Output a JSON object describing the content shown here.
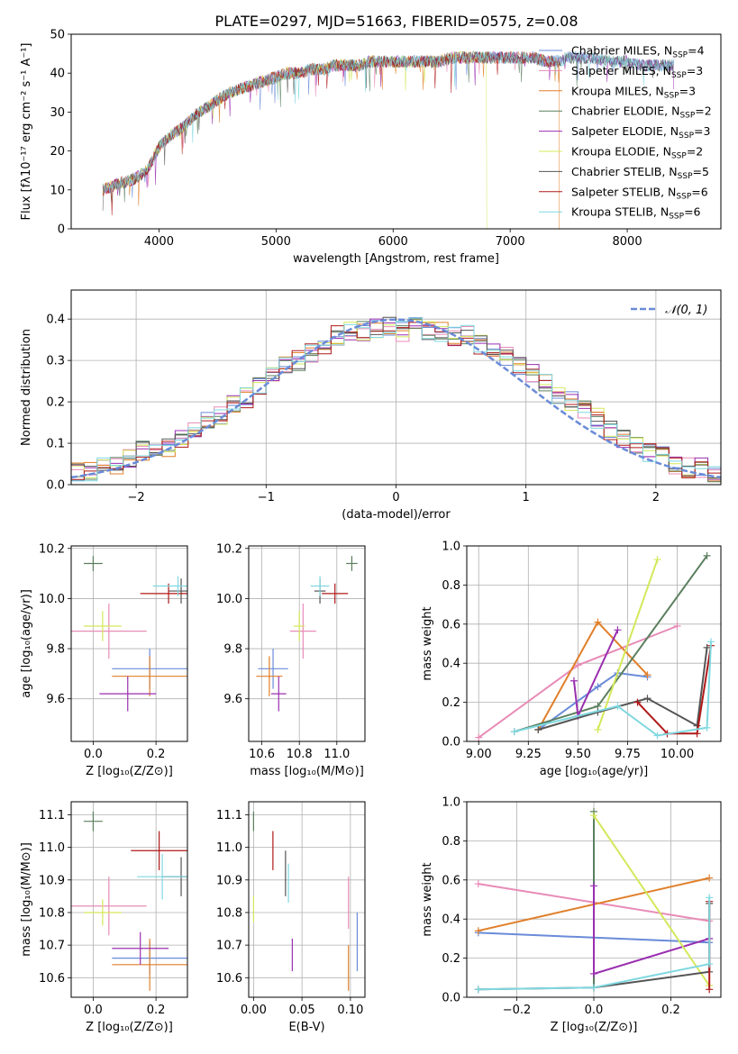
{
  "figure": {
    "title": "PLATE=0297, MJD=51663, FIBERID=0575, z=0.08"
  },
  "chart_data": [
    {
      "id": "spectrum",
      "type": "line",
      "title": "PLATE=0297, MJD=51663, FIBERID=0575, z=0.08",
      "xlabel": "wavelength [Angstrom, rest frame]",
      "ylabel": "Flux [fλ10⁻¹⁷ erg cm⁻² s⁻¹ A⁻¹]",
      "xlim": [
        3250,
        8800
      ],
      "ylim": [
        0,
        50
      ],
      "xticks": [
        "4000",
        "5000",
        "6000",
        "7000",
        "8000"
      ],
      "yticks": [
        "0",
        "10",
        "20",
        "30",
        "40",
        "50"
      ],
      "grid": false,
      "legend_position": "right",
      "spectrum_envelope": {
        "x": [
          3520,
          3600,
          3700,
          3800,
          3900,
          4000,
          4100,
          4200,
          4300,
          4400,
          4500,
          4600,
          4700,
          4800,
          4900,
          5000,
          5100,
          5200,
          5300,
          5400,
          5500,
          5600,
          5700,
          5800,
          5900,
          6000,
          6100,
          6200,
          6300,
          6400,
          6500,
          6600,
          6700,
          6800,
          6900,
          7000,
          7100,
          7200,
          7300,
          7400,
          7500,
          7600,
          7700,
          7800,
          7900,
          8000,
          8100,
          8200,
          8300,
          8400
        ],
        "y": [
          10,
          11,
          12,
          13,
          15,
          21,
          24,
          26,
          29,
          31,
          33,
          35,
          36,
          37,
          38,
          39,
          40,
          40,
          41,
          41,
          42,
          42,
          42,
          43,
          43,
          43,
          43,
          43,
          43,
          43,
          44,
          44,
          44,
          44,
          44,
          44,
          44,
          44,
          43,
          43,
          44,
          44,
          44,
          43,
          43,
          43,
          42,
          42,
          42,
          42
        ]
      },
      "series": [
        {
          "name": "Chabrier MILES, N_SSP=4",
          "label_main": "Chabrier MILES, N",
          "label_sub": "SSP",
          "label_tail": "=4",
          "color": "#6a8bd8"
        },
        {
          "name": "Salpeter MILES, N_SSP=3",
          "label_main": "Salpeter MILES, N",
          "label_sub": "SSP",
          "label_tail": "=3",
          "color": "#e88bb7"
        },
        {
          "name": "Kroupa MILES, N_SSP=3",
          "label_main": "Kroupa MILES, N",
          "label_sub": "SSP",
          "label_tail": "=3",
          "color": "#e07f2a"
        },
        {
          "name": "Chabrier ELODIE, N_SSP=2",
          "label_main": "Chabrier ELODIE, N",
          "label_sub": "SSP",
          "label_tail": "=2",
          "color": "#5b7f5e"
        },
        {
          "name": "Salpeter ELODIE, N_SSP=3",
          "label_main": "Salpeter ELODIE, N",
          "label_sub": "SSP",
          "label_tail": "=3",
          "color": "#9a2fb0"
        },
        {
          "name": "Kroupa ELODIE, N_SSP=2",
          "label_main": "Kroupa ELODIE, N",
          "label_sub": "SSP",
          "label_tail": "=2",
          "color": "#d4e85a"
        },
        {
          "name": "Chabrier STELIB, N_SSP=5",
          "label_main": "Chabrier STELIB, N",
          "label_sub": "SSP",
          "label_tail": "=5",
          "color": "#555555"
        },
        {
          "name": "Salpeter STELIB, N_SSP=6",
          "label_main": "Salpeter STELIB, N",
          "label_sub": "SSP",
          "label_tail": "=6",
          "color": "#b01818"
        },
        {
          "name": "Kroupa STELIB, N_SSP=6",
          "label_main": "Kroupa STELIB, N",
          "label_sub": "SSP",
          "label_tail": "=6",
          "color": "#7fd8e0"
        }
      ]
    },
    {
      "id": "residuals",
      "type": "line",
      "xlabel": "(data-model)/error",
      "ylabel": "Normed distribution",
      "xlim": [
        -2.5,
        2.5
      ],
      "ylim": [
        0,
        0.47
      ],
      "xticks": [
        "−2",
        "−1",
        "0",
        "1",
        "2"
      ],
      "yticks": [
        "0.0",
        "0.1",
        "0.2",
        "0.3",
        "0.4"
      ],
      "grid": true,
      "legend": "𝒩(0, 1)",
      "legend_position": "top-right",
      "gaussian": {
        "mu": 0,
        "sigma": 1,
        "color": "#6a8bd8"
      },
      "histogram_envelope": {
        "bins": [
          -2.5,
          -2.4,
          -2.3,
          -2.2,
          -2.1,
          -2.0,
          -1.9,
          -1.8,
          -1.7,
          -1.6,
          -1.5,
          -1.4,
          -1.3,
          -1.2,
          -1.1,
          -1.0,
          -0.9,
          -0.8,
          -0.7,
          -0.6,
          -0.5,
          -0.4,
          -0.3,
          -0.2,
          -0.1,
          0.0,
          0.1,
          0.2,
          0.3,
          0.4,
          0.5,
          0.6,
          0.7,
          0.8,
          0.9,
          1.0,
          1.1,
          1.2,
          1.3,
          1.4,
          1.5,
          1.6,
          1.7,
          1.8,
          1.9,
          2.0,
          2.1,
          2.2,
          2.3,
          2.4
        ],
        "density": [
          0.03,
          0.03,
          0.04,
          0.05,
          0.06,
          0.08,
          0.08,
          0.09,
          0.11,
          0.14,
          0.15,
          0.17,
          0.19,
          0.21,
          0.24,
          0.26,
          0.29,
          0.3,
          0.32,
          0.34,
          0.36,
          0.37,
          0.37,
          0.38,
          0.38,
          0.37,
          0.38,
          0.37,
          0.37,
          0.36,
          0.36,
          0.34,
          0.33,
          0.31,
          0.29,
          0.27,
          0.25,
          0.22,
          0.2,
          0.18,
          0.16,
          0.13,
          0.11,
          0.1,
          0.08,
          0.07,
          0.05,
          0.04,
          0.04,
          0.03
        ]
      }
    },
    {
      "id": "age_vs_Z",
      "type": "scatter",
      "xlabel": "Z [log₁₀(Z/Z⊙)]",
      "ylabel": "age  [log₁₀(age/yr)]",
      "xlim": [
        -0.07,
        0.3
      ],
      "ylim": [
        9.43,
        10.21
      ],
      "xticks": [
        "0.0",
        "0.2"
      ],
      "yticks": [
        "9.6",
        "9.8",
        "10.0",
        "10.2"
      ],
      "grid": true,
      "points": [
        {
          "color": "#6a8bd8",
          "x": 0.18,
          "y": 9.72,
          "xerr": 0.12,
          "yerr": 0.08
        },
        {
          "color": "#e88bb7",
          "x": 0.05,
          "y": 9.87,
          "xerr": 0.12,
          "yerr": 0.11
        },
        {
          "color": "#e07f2a",
          "x": 0.18,
          "y": 9.69,
          "xerr": 0.12,
          "yerr": 0.08
        },
        {
          "color": "#5b7f5e",
          "x": 0.0,
          "y": 10.14,
          "xerr": 0.03,
          "yerr": 0.03
        },
        {
          "color": "#9a2fb0",
          "x": 0.11,
          "y": 9.62,
          "xerr": 0.09,
          "yerr": 0.07
        },
        {
          "color": "#d4e85a",
          "x": 0.03,
          "y": 9.89,
          "xerr": 0.06,
          "yerr": 0.06
        },
        {
          "color": "#555555",
          "x": 0.28,
          "y": 10.03,
          "xerr": 0.04,
          "yerr": 0.05
        },
        {
          "color": "#b01818",
          "x": 0.24,
          "y": 10.02,
          "xerr": 0.09,
          "yerr": 0.04
        },
        {
          "color": "#7fd8e0",
          "x": 0.27,
          "y": 10.05,
          "xerr": 0.08,
          "yerr": 0.04
        }
      ]
    },
    {
      "id": "age_vs_mass",
      "type": "scatter",
      "xlabel": "mass [log₁₀(M/M⊙)]",
      "xlim": [
        10.53,
        11.15
      ],
      "ylim": [
        9.43,
        10.21
      ],
      "xticks": [
        "10.6",
        "10.8",
        "11.0"
      ],
      "yticks": [
        "9.6",
        "9.8",
        "10.0",
        "10.2"
      ],
      "grid": true,
      "points": [
        {
          "color": "#6a8bd8",
          "x": 10.66,
          "y": 9.72,
          "xerr": 0.08,
          "yerr": 0.08
        },
        {
          "color": "#e88bb7",
          "x": 10.82,
          "y": 9.87,
          "xerr": 0.07,
          "yerr": 0.11
        },
        {
          "color": "#e07f2a",
          "x": 10.64,
          "y": 9.69,
          "xerr": 0.07,
          "yerr": 0.08
        },
        {
          "color": "#5b7f5e",
          "x": 11.08,
          "y": 10.14,
          "xerr": 0.03,
          "yerr": 0.03
        },
        {
          "color": "#9a2fb0",
          "x": 10.69,
          "y": 9.62,
          "xerr": 0.04,
          "yerr": 0.07
        },
        {
          "color": "#d4e85a",
          "x": 10.8,
          "y": 9.89,
          "xerr": 0.03,
          "yerr": 0.06
        },
        {
          "color": "#555555",
          "x": 10.91,
          "y": 10.03,
          "xerr": 0.03,
          "yerr": 0.05
        },
        {
          "color": "#b01818",
          "x": 10.99,
          "y": 10.02,
          "xerr": 0.07,
          "yerr": 0.04
        },
        {
          "color": "#7fd8e0",
          "x": 10.91,
          "y": 10.05,
          "xerr": 0.05,
          "yerr": 0.04
        }
      ]
    },
    {
      "id": "mass_weight_vs_age",
      "type": "line",
      "xlabel": "age  [log₁₀(age/yr)]",
      "ylabel": "mass weight",
      "xlim": [
        8.94,
        10.22
      ],
      "ylim": [
        0,
        1
      ],
      "xticks": [
        "9.00",
        "9.25",
        "9.50",
        "9.75",
        "10.00"
      ],
      "yticks": [
        "0.0",
        "0.2",
        "0.4",
        "0.6",
        "0.8",
        "1.0"
      ],
      "grid": true,
      "series": [
        {
          "color": "#6a8bd8",
          "x": [
            9.3,
            9.6,
            9.7,
            9.85
          ],
          "y": [
            0.06,
            0.28,
            0.35,
            0.33
          ]
        },
        {
          "color": "#e88bb7",
          "x": [
            9.0,
            9.5,
            10.0
          ],
          "y": [
            0.02,
            0.39,
            0.59
          ]
        },
        {
          "color": "#e07f2a",
          "x": [
            9.3,
            9.6,
            9.85
          ],
          "y": [
            0.06,
            0.61,
            0.34
          ]
        },
        {
          "color": "#5b7f5e",
          "x": [
            9.18,
            9.6,
            10.15
          ],
          "y": [
            0.05,
            0.18,
            0.95
          ]
        },
        {
          "color": "#9a2fb0",
          "x": [
            9.48,
            9.5,
            9.7
          ],
          "y": [
            0.31,
            0.13,
            0.57
          ]
        },
        {
          "color": "#d4e85a",
          "x": [
            9.6,
            9.9
          ],
          "y": [
            0.06,
            0.93
          ]
        },
        {
          "color": "#555555",
          "x": [
            9.3,
            9.6,
            9.85,
            10.1,
            10.15
          ],
          "y": [
            0.06,
            0.15,
            0.22,
            0.08,
            0.48
          ]
        },
        {
          "color": "#b01818",
          "x": [
            9.8,
            9.95,
            10.1,
            10.17
          ],
          "y": [
            0.2,
            0.04,
            0.04,
            0.49
          ]
        },
        {
          "color": "#7fd8e0",
          "x": [
            9.18,
            9.7,
            9.9,
            10.15,
            10.17
          ],
          "y": [
            0.05,
            0.18,
            0.03,
            0.07,
            0.51
          ]
        }
      ]
    },
    {
      "id": "mass_vs_Z",
      "type": "scatter",
      "xlabel": "Z [log₁₀(Z/Z⊙)]",
      "ylabel": "mass [log₁₀(M/M⊙)]",
      "xlim": [
        -0.07,
        0.3
      ],
      "ylim": [
        10.54,
        11.14
      ],
      "xticks": [
        "0.0",
        "0.2"
      ],
      "yticks": [
        "10.6",
        "10.7",
        "10.8",
        "10.9",
        "11.0",
        "11.1"
      ],
      "grid": true,
      "points": [
        {
          "color": "#6a8bd8",
          "x": 0.18,
          "y": 10.66,
          "xerr": 0.12,
          "yerr": 0.05
        },
        {
          "color": "#e88bb7",
          "x": 0.05,
          "y": 10.82,
          "xerr": 0.12,
          "yerr": 0.09
        },
        {
          "color": "#e07f2a",
          "x": 0.18,
          "y": 10.64,
          "xerr": 0.12,
          "yerr": 0.08
        },
        {
          "color": "#5b7f5e",
          "x": 0.0,
          "y": 11.08,
          "xerr": 0.03,
          "yerr": 0.03
        },
        {
          "color": "#9a2fb0",
          "x": 0.15,
          "y": 10.69,
          "xerr": 0.09,
          "yerr": 0.05
        },
        {
          "color": "#d4e85a",
          "x": 0.03,
          "y": 10.8,
          "xerr": 0.06,
          "yerr": 0.04
        },
        {
          "color": "#555555",
          "x": 0.28,
          "y": 10.91,
          "xerr": 0.06,
          "yerr": 0.06
        },
        {
          "color": "#b01818",
          "x": 0.21,
          "y": 10.99,
          "xerr": 0.09,
          "yerr": 0.06
        },
        {
          "color": "#7fd8e0",
          "x": 0.22,
          "y": 10.91,
          "xerr": 0.08,
          "yerr": 0.07
        }
      ]
    },
    {
      "id": "mass_vs_ebv",
      "type": "scatter",
      "xlabel": "E(B-V)",
      "xlim": [
        -0.005,
        0.115
      ],
      "ylim": [
        10.54,
        11.14
      ],
      "xticks": [
        "0.00",
        "0.05",
        "0.10"
      ],
      "yticks": [
        "10.6",
        "10.7",
        "10.8",
        "10.9",
        "11.0",
        "11.1"
      ],
      "grid": true,
      "points": [
        {
          "color": "#6a8bd8",
          "x": 0.107,
          "y": 10.71,
          "yerr": 0.09
        },
        {
          "color": "#e88bb7",
          "x": 0.098,
          "y": 10.83,
          "yerr": 0.08
        },
        {
          "color": "#e07f2a",
          "x": 0.098,
          "y": 10.63,
          "yerr": 0.07
        },
        {
          "color": "#5b7f5e",
          "x": 0.0,
          "y": 11.08,
          "yerr": 0.03
        },
        {
          "color": "#9a2fb0",
          "x": 0.04,
          "y": 10.67,
          "yerr": 0.05
        },
        {
          "color": "#d4e85a",
          "x": 0.0,
          "y": 10.81,
          "yerr": 0.04
        },
        {
          "color": "#555555",
          "x": 0.033,
          "y": 10.92,
          "yerr": 0.07
        },
        {
          "color": "#b01818",
          "x": 0.02,
          "y": 10.99,
          "yerr": 0.06
        },
        {
          "color": "#7fd8e0",
          "x": 0.036,
          "y": 10.89,
          "yerr": 0.06
        }
      ]
    },
    {
      "id": "mass_weight_vs_Z",
      "type": "line",
      "xlabel": "Z [log₁₀(Z/Z⊙)]",
      "ylabel": "mass weight",
      "xlim": [
        -0.33,
        0.33
      ],
      "ylim": [
        0,
        1
      ],
      "xticks": [
        "−0.2",
        "0.0",
        "0.2"
      ],
      "yticks": [
        "0.0",
        "0.2",
        "0.4",
        "0.6",
        "0.8",
        "1.0"
      ],
      "grid": true,
      "series": [
        {
          "color": "#6a8bd8",
          "x": [
            -0.3,
            0.3
          ],
          "y": [
            0.33,
            0.28
          ]
        },
        {
          "color": "#e88bb7",
          "x": [
            -0.3,
            0.3
          ],
          "y": [
            0.58,
            0.39
          ]
        },
        {
          "color": "#e07f2a",
          "x": [
            -0.3,
            0.3
          ],
          "y": [
            0.34,
            0.61
          ]
        },
        {
          "color": "#5b7f5e",
          "x": [
            0.0,
            0.0
          ],
          "y": [
            0.05,
            0.95
          ]
        },
        {
          "color": "#9a2fb0",
          "x": [
            0.0,
            0.0,
            0.3
          ],
          "y": [
            0.57,
            0.12,
            0.3
          ]
        },
        {
          "color": "#d4e85a",
          "x": [
            0.0,
            0.3
          ],
          "y": [
            0.93,
            0.06
          ]
        },
        {
          "color": "#555555",
          "x": [
            -0.3,
            0.0,
            0.3,
            0.3
          ],
          "y": [
            0.04,
            0.05,
            0.13,
            0.48
          ]
        },
        {
          "color": "#b01818",
          "x": [
            0.3,
            0.3
          ],
          "y": [
            0.04,
            0.49
          ]
        },
        {
          "color": "#7fd8e0",
          "x": [
            -0.3,
            0.0,
            0.3,
            0.3
          ],
          "y": [
            0.04,
            0.05,
            0.17,
            0.51
          ]
        }
      ]
    }
  ]
}
